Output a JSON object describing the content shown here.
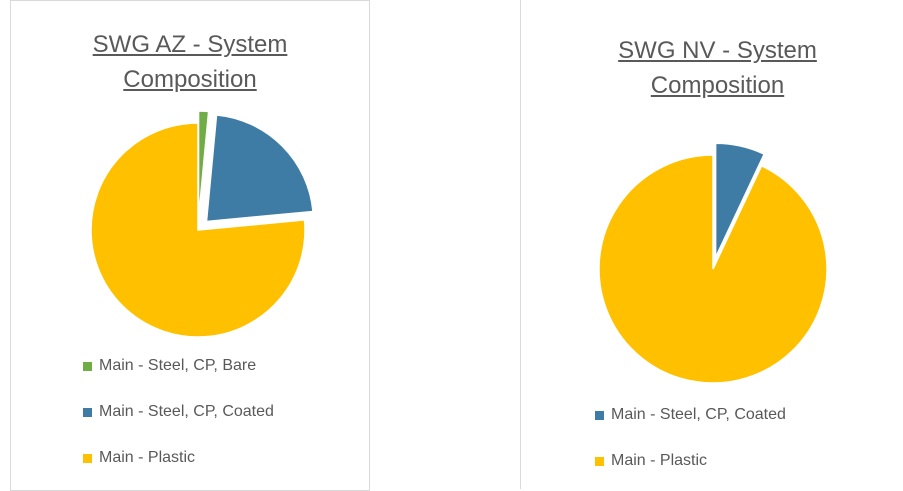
{
  "chart_data": [
    {
      "type": "pie",
      "title": "SWG AZ - System Composition",
      "categories": [
        "Main - Steel, CP, Bare",
        "Main - Steel, CP, Coated",
        "Main - Plastic"
      ],
      "values": [
        1.5,
        22,
        76.5
      ],
      "colors": [
        "#70ad47",
        "#3e7ca6",
        "#ffc000"
      ],
      "exploded": [
        true,
        true,
        false
      ]
    },
    {
      "type": "pie",
      "title": "SWG NV - System Composition",
      "categories": [
        "Main - Steel, CP, Coated",
        "Main - Plastic"
      ],
      "values": [
        7,
        93
      ],
      "colors": [
        "#3e7ca6",
        "#ffc000"
      ],
      "exploded": [
        true,
        false
      ]
    }
  ]
}
